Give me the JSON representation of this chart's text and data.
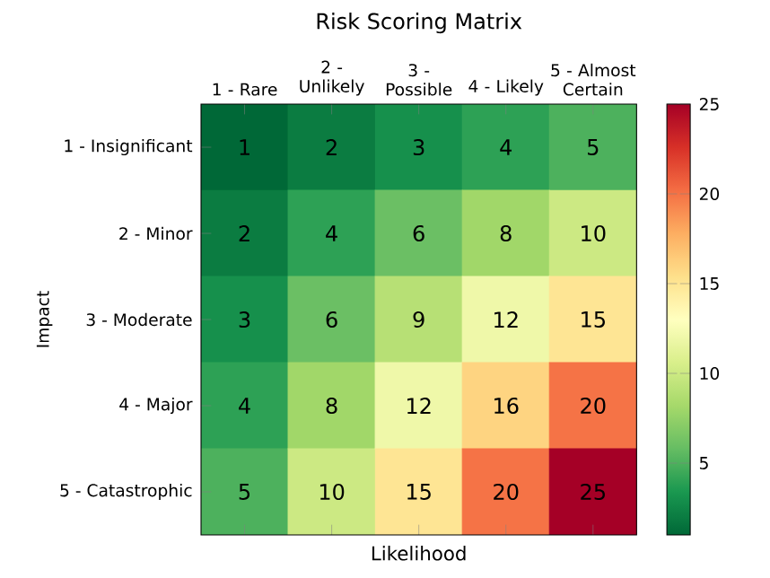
{
  "chart_data": {
    "type": "heatmap",
    "title": "Risk Scoring Matrix",
    "xlabel": "Likelihood",
    "ylabel": "Impact",
    "categories": [
      "1 - Rare",
      "2 - Unlikely",
      "3 - Possible",
      "4 - Likely",
      "5 - Almost Certain"
    ],
    "y_categories": [
      "1 - Insignificant",
      "2 - Minor",
      "3 - Moderate",
      "4 - Major",
      "5 - Catastrophic"
    ],
    "cells": [
      [
        1,
        2,
        3,
        4,
        5
      ],
      [
        2,
        4,
        6,
        8,
        10
      ],
      [
        3,
        6,
        9,
        12,
        15
      ],
      [
        4,
        8,
        12,
        16,
        20
      ],
      [
        5,
        10,
        15,
        20,
        25
      ]
    ],
    "clim": [
      1,
      25
    ],
    "cticks": [
      5,
      10,
      15,
      20,
      25
    ],
    "data_labels": true,
    "grid": false
  }
}
